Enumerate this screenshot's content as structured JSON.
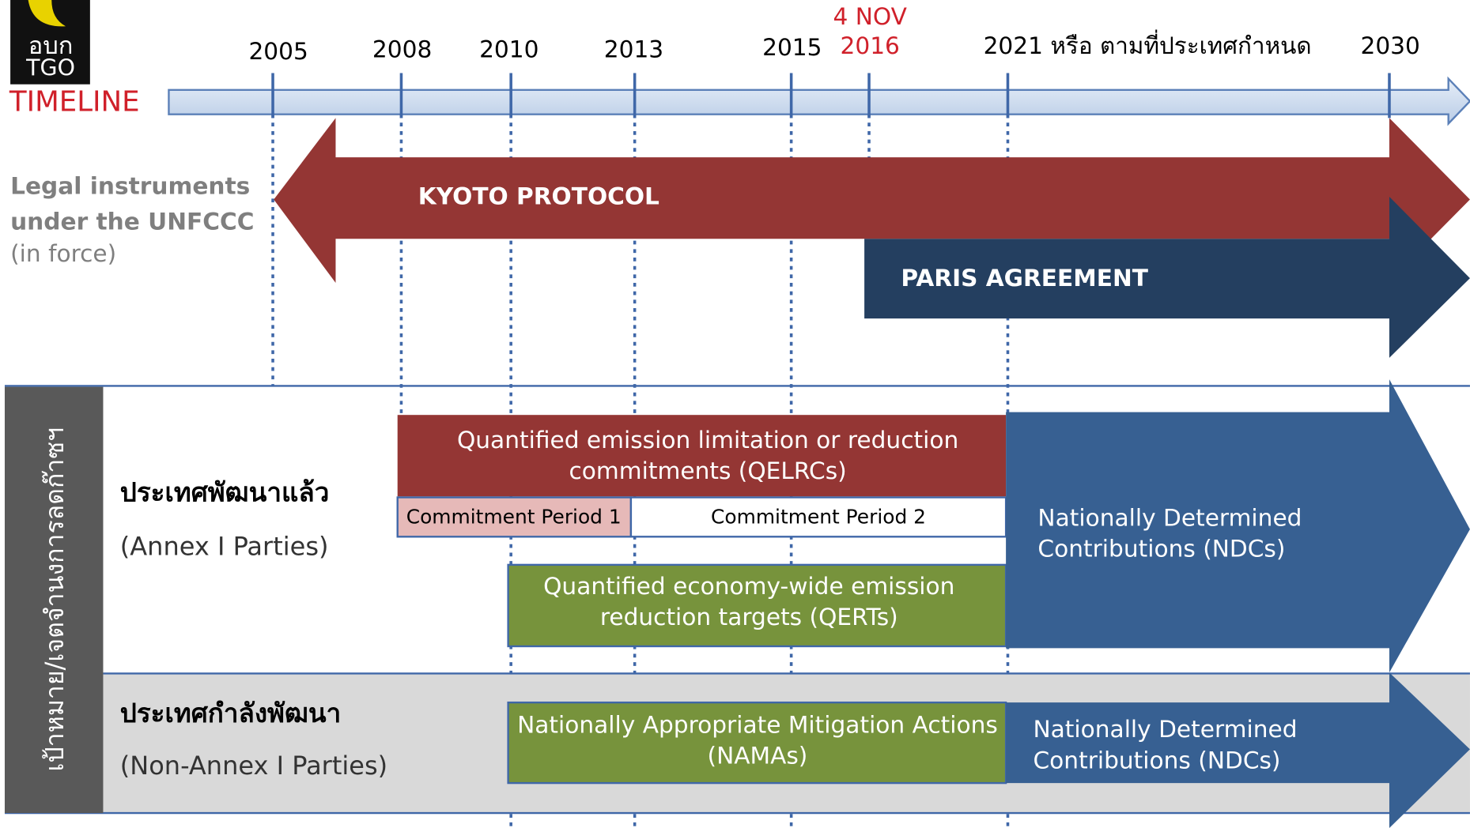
{
  "logo": {
    "line1": "อบก",
    "line2": "TGO"
  },
  "timeline": {
    "title": "TIMELINE",
    "years": [
      "2005",
      "2008",
      "2010",
      "2013",
      "2015"
    ],
    "date_day": "4 NOV",
    "date_year": "2016",
    "year_2021": "2021 หรือ ตามที่ประเทศกำหนด",
    "year_2030": "2030"
  },
  "legal": {
    "lines": [
      "Legal instruments",
      "under the UNFCCC",
      "(in force)"
    ],
    "kyoto": "KYOTO PROTOCOL",
    "paris": "PARIS AGREEMENT"
  },
  "side_label": "เป้าหมาย/เจตจำนงการลดก๊าซฯ",
  "developed": {
    "title": "ประเทศพัฒนาแล้ว",
    "subtitle": "(Annex I Parties)",
    "qelrc": [
      "Quantified emission limitation or reduction",
      "commitments (QELRCs)"
    ],
    "cp1": "Commitment Period 1",
    "cp2": "Commitment Period 2",
    "qert": [
      "Quantified economy-wide emission",
      "reduction targets (QERTs)"
    ],
    "ndc": [
      "Nationally Determined",
      "Contributions (NDCs)"
    ]
  },
  "developing": {
    "title": "ประเทศกำลังพัฒนา",
    "subtitle": "(Non-Annex I Parties)",
    "nama": [
      "Nationally Appropriate Mitigation Actions",
      "(NAMAs)"
    ],
    "ndc": [
      "Nationally Determined",
      "Contributions (NDCs)"
    ]
  }
}
